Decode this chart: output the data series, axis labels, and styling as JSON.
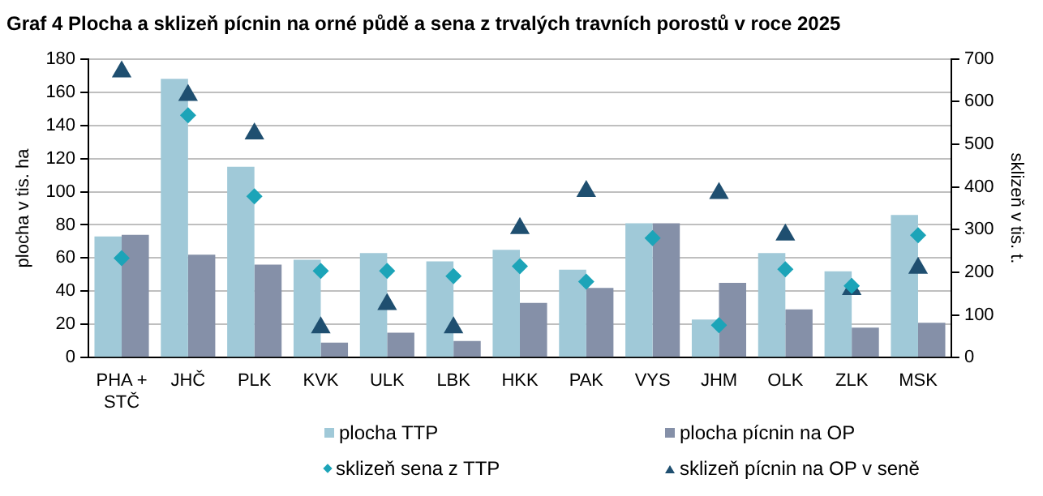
{
  "chart_data": {
    "type": "bar",
    "title": "Graf 4 Plocha a sklizeň pícnin na orné půdě a sena z trvalých travních porostů v roce 2025",
    "categories": [
      "PHA + STČ",
      "JHČ",
      "PLK",
      "KVK",
      "ULK",
      "LBK",
      "HKK",
      "PAK",
      "VYS",
      "JHM",
      "OLK",
      "ZLK",
      "MSK"
    ],
    "series": [
      {
        "name": "plocha TTP",
        "color": "#a0c9d8",
        "values": [
          73,
          168,
          115,
          59,
          63,
          58,
          65,
          53,
          81,
          23,
          63,
          52,
          86
        ]
      },
      {
        "name": "plocha pícnin na OP",
        "color": "#8590a8",
        "values": [
          74,
          62,
          56,
          9,
          15,
          10,
          33,
          42,
          81,
          45,
          29,
          18,
          21
        ]
      },
      {
        "name": "sklizeň sena z TTP",
        "type": "scatter",
        "axis": "y2",
        "marker": "diamond",
        "color": "#1ca4b8",
        "values": [
          233,
          568,
          378,
          203,
          203,
          191,
          214,
          178,
          280,
          76,
          207,
          168,
          287
        ]
      },
      {
        "name": "sklizeň pícnin na OP v seně",
        "type": "scatter",
        "axis": "y2",
        "marker": "triangle",
        "color": "#1f4f70",
        "values": [
          670,
          615,
          525,
          70,
          125,
          70,
          303,
          390,
          null,
          385,
          288,
          160,
          210
        ]
      }
    ],
    "ylabel": "plocha v tis. ha",
    "y2label": "sklizeň v tis. t.",
    "ylim": [
      0,
      180
    ],
    "yticks": [
      0,
      20,
      40,
      60,
      80,
      100,
      120,
      140,
      160,
      180
    ],
    "y2lim": [
      0,
      700
    ],
    "y2ticks": [
      0,
      100,
      200,
      300,
      400,
      500,
      600,
      700
    ],
    "grid": "y",
    "legend": "bottom"
  }
}
